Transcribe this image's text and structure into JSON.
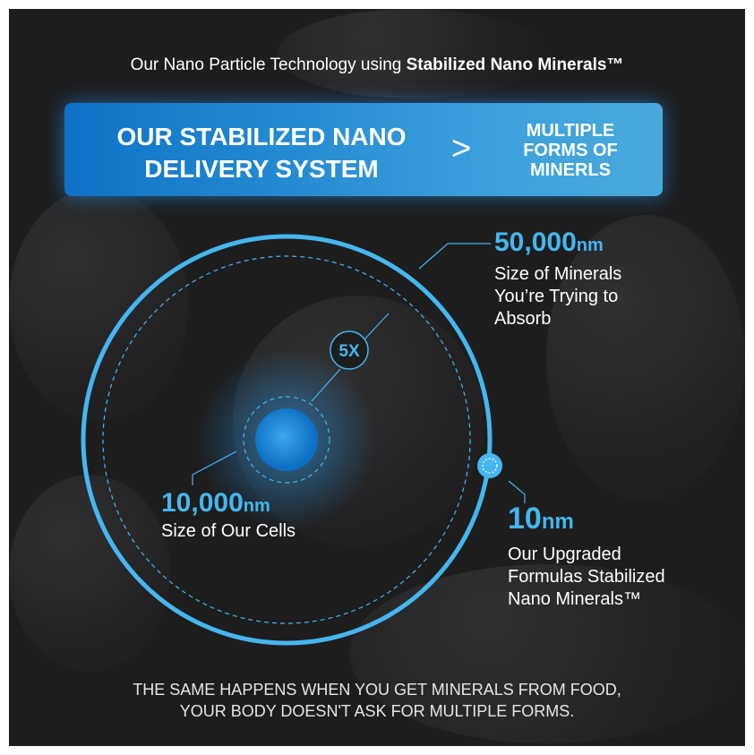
{
  "title": {
    "prefix": "Our Nano Particle Technology using ",
    "bold": "Stabilized Nano Minerals™"
  },
  "banner": {
    "left_line1": "OUR STABILIZED NANO",
    "left_line2": "DELIVERY SYSTEM",
    "comparator": ">",
    "right_line1": "MULTIPLE",
    "right_line2": "FORMS OF",
    "right_line3": "MINERLS"
  },
  "diagram": {
    "multiplier": "5X",
    "minerals": {
      "value": "50,000",
      "unit": "nm",
      "desc1": "Size of Minerals",
      "desc2": "You’re Trying to",
      "desc3": "Absorb"
    },
    "cells": {
      "value": "10,000",
      "unit": "nm",
      "desc1": "Size of Our Cells"
    },
    "nano": {
      "value": "10",
      "unit": "nm",
      "desc1": "Our Upgraded",
      "desc2": "Formulas Stabilized",
      "desc3": "Nano Minerals™"
    }
  },
  "footer": {
    "line1": "THE SAME HAPPENS WHEN YOU GET MINERALS FROM FOOD,",
    "line2": "YOUR BODY DOESN'T ASK FOR MULTIPLE FORMS."
  },
  "colors": {
    "accent": "#45b6ef",
    "background": "#1d1d1e",
    "banner_start": "#0d72c6",
    "banner_end": "#4aa9db"
  }
}
